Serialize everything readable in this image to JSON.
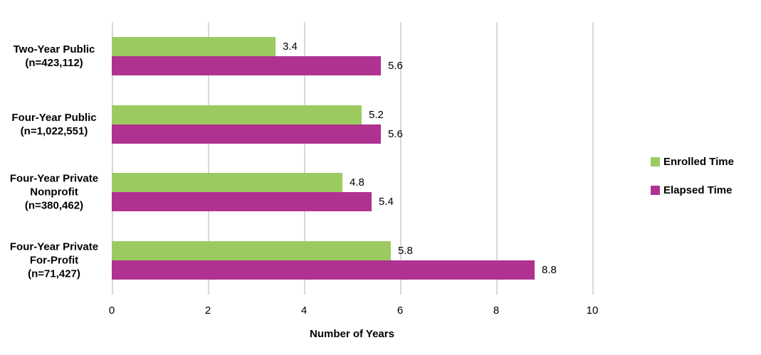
{
  "chart_data": {
    "type": "bar",
    "orientation": "horizontal",
    "title": "",
    "xlabel": "Number of Years",
    "ylabel": "",
    "xlim": [
      0,
      10
    ],
    "xticks": [
      0,
      2,
      4,
      6,
      8,
      10
    ],
    "grid": true,
    "grid_color": "#d9d9d9",
    "legend_position": "right",
    "data_labels": true,
    "categories": [
      [
        "Two-Year Public",
        "(n=423,112)"
      ],
      [
        "Four-Year Public",
        "(n=1,022,551)"
      ],
      [
        "Four-Year Private",
        "Nonprofit",
        "(n=380,462)"
      ],
      [
        "Four-Year Private",
        "For-Profit",
        "(n=71,427)"
      ]
    ],
    "series": [
      {
        "name": "Enrolled Time",
        "color": "#9cca61",
        "values": [
          3.4,
          5.2,
          4.8,
          5.8
        ]
      },
      {
        "name": "Elapsed Time",
        "color": "#b03290",
        "values": [
          5.6,
          5.6,
          5.4,
          8.8
        ]
      }
    ]
  }
}
